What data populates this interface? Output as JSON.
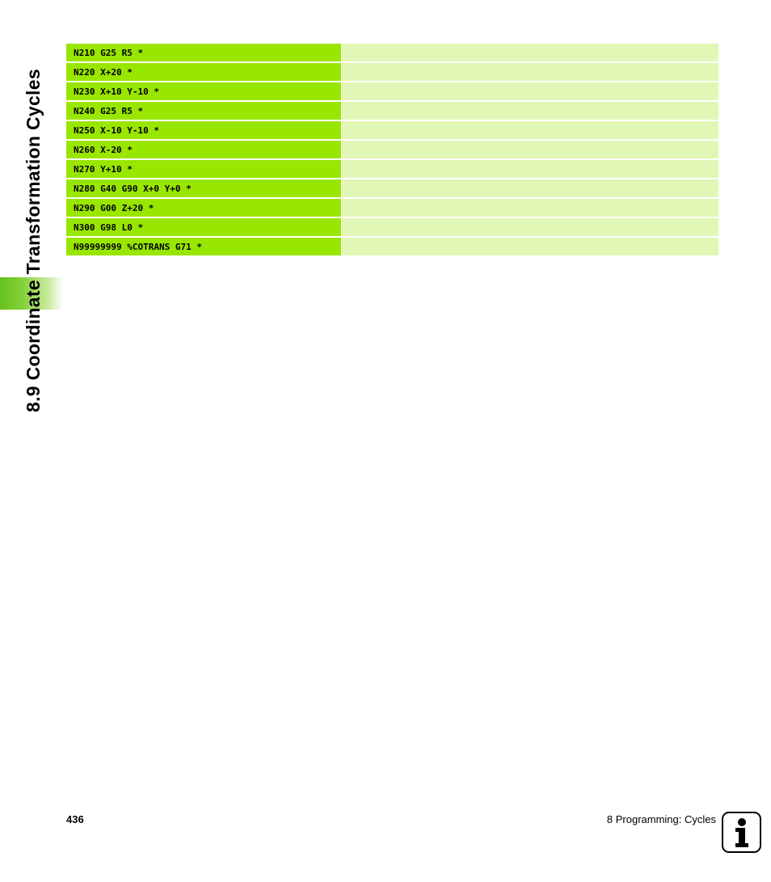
{
  "sidebar": {
    "section_title": "8.9 Coordinate Transformation Cycles"
  },
  "code_block": {
    "lines": [
      "N210 G25 R5 *",
      "N220 X+20 *",
      "N230 X+10 Y-10 *",
      "N240 G25 R5 *",
      "N250 X-10 Y-10 *",
      "N260 X-20 *",
      "N270 Y+10 *",
      "N280 G40 G90 X+0 Y+0 *",
      "N290 G00 Z+20 *",
      "N300 G98 L0 *",
      "N99999999 %COTRANS G71 *"
    ]
  },
  "footer": {
    "page_number": "436",
    "chapter": "8 Programming: Cycles",
    "icon": "info-icon"
  },
  "colors": {
    "code_cell": "#99e600",
    "comment_cell": "#e0f7b5",
    "tab_accent": "#66c21a"
  }
}
